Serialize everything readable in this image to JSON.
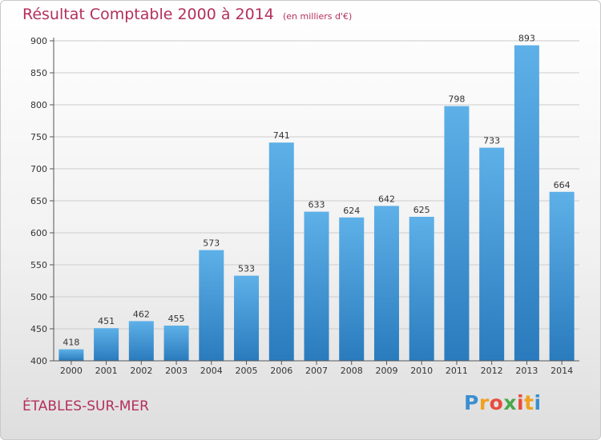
{
  "chart_data": {
    "type": "bar",
    "title": "Résultat Comptable 2000 à 2014",
    "subtitle": "(en milliers d'€)",
    "categories": [
      "2000",
      "2001",
      "2002",
      "2003",
      "2004",
      "2005",
      "2006",
      "2007",
      "2008",
      "2009",
      "2010",
      "2011",
      "2012",
      "2013",
      "2014"
    ],
    "values": [
      418,
      451,
      462,
      455,
      573,
      533,
      741,
      633,
      624,
      642,
      625,
      798,
      733,
      893,
      664
    ],
    "ylim": [
      400,
      900
    ],
    "yticks": [
      400,
      450,
      500,
      550,
      600,
      650,
      700,
      750,
      800,
      850,
      900
    ],
    "xlabel": "",
    "ylabel": "",
    "grid": true,
    "bar_color_top": "#5eb0e8",
    "bar_color_bottom": "#2a7bbd"
  },
  "commune": "ÉTABLES-SUR-MER",
  "brand": {
    "letters": [
      "P",
      "r",
      "o",
      "x",
      "i",
      "t",
      "i"
    ],
    "colors": [
      "#3a8fd0",
      "#f0a020",
      "#e84c3d",
      "#4aa84a",
      "#e84c3d",
      "#f0a020",
      "#3a8fd0"
    ]
  },
  "colors": {
    "title": "#b3305b",
    "axis_text": "#333333",
    "grid": "#cccccc"
  }
}
